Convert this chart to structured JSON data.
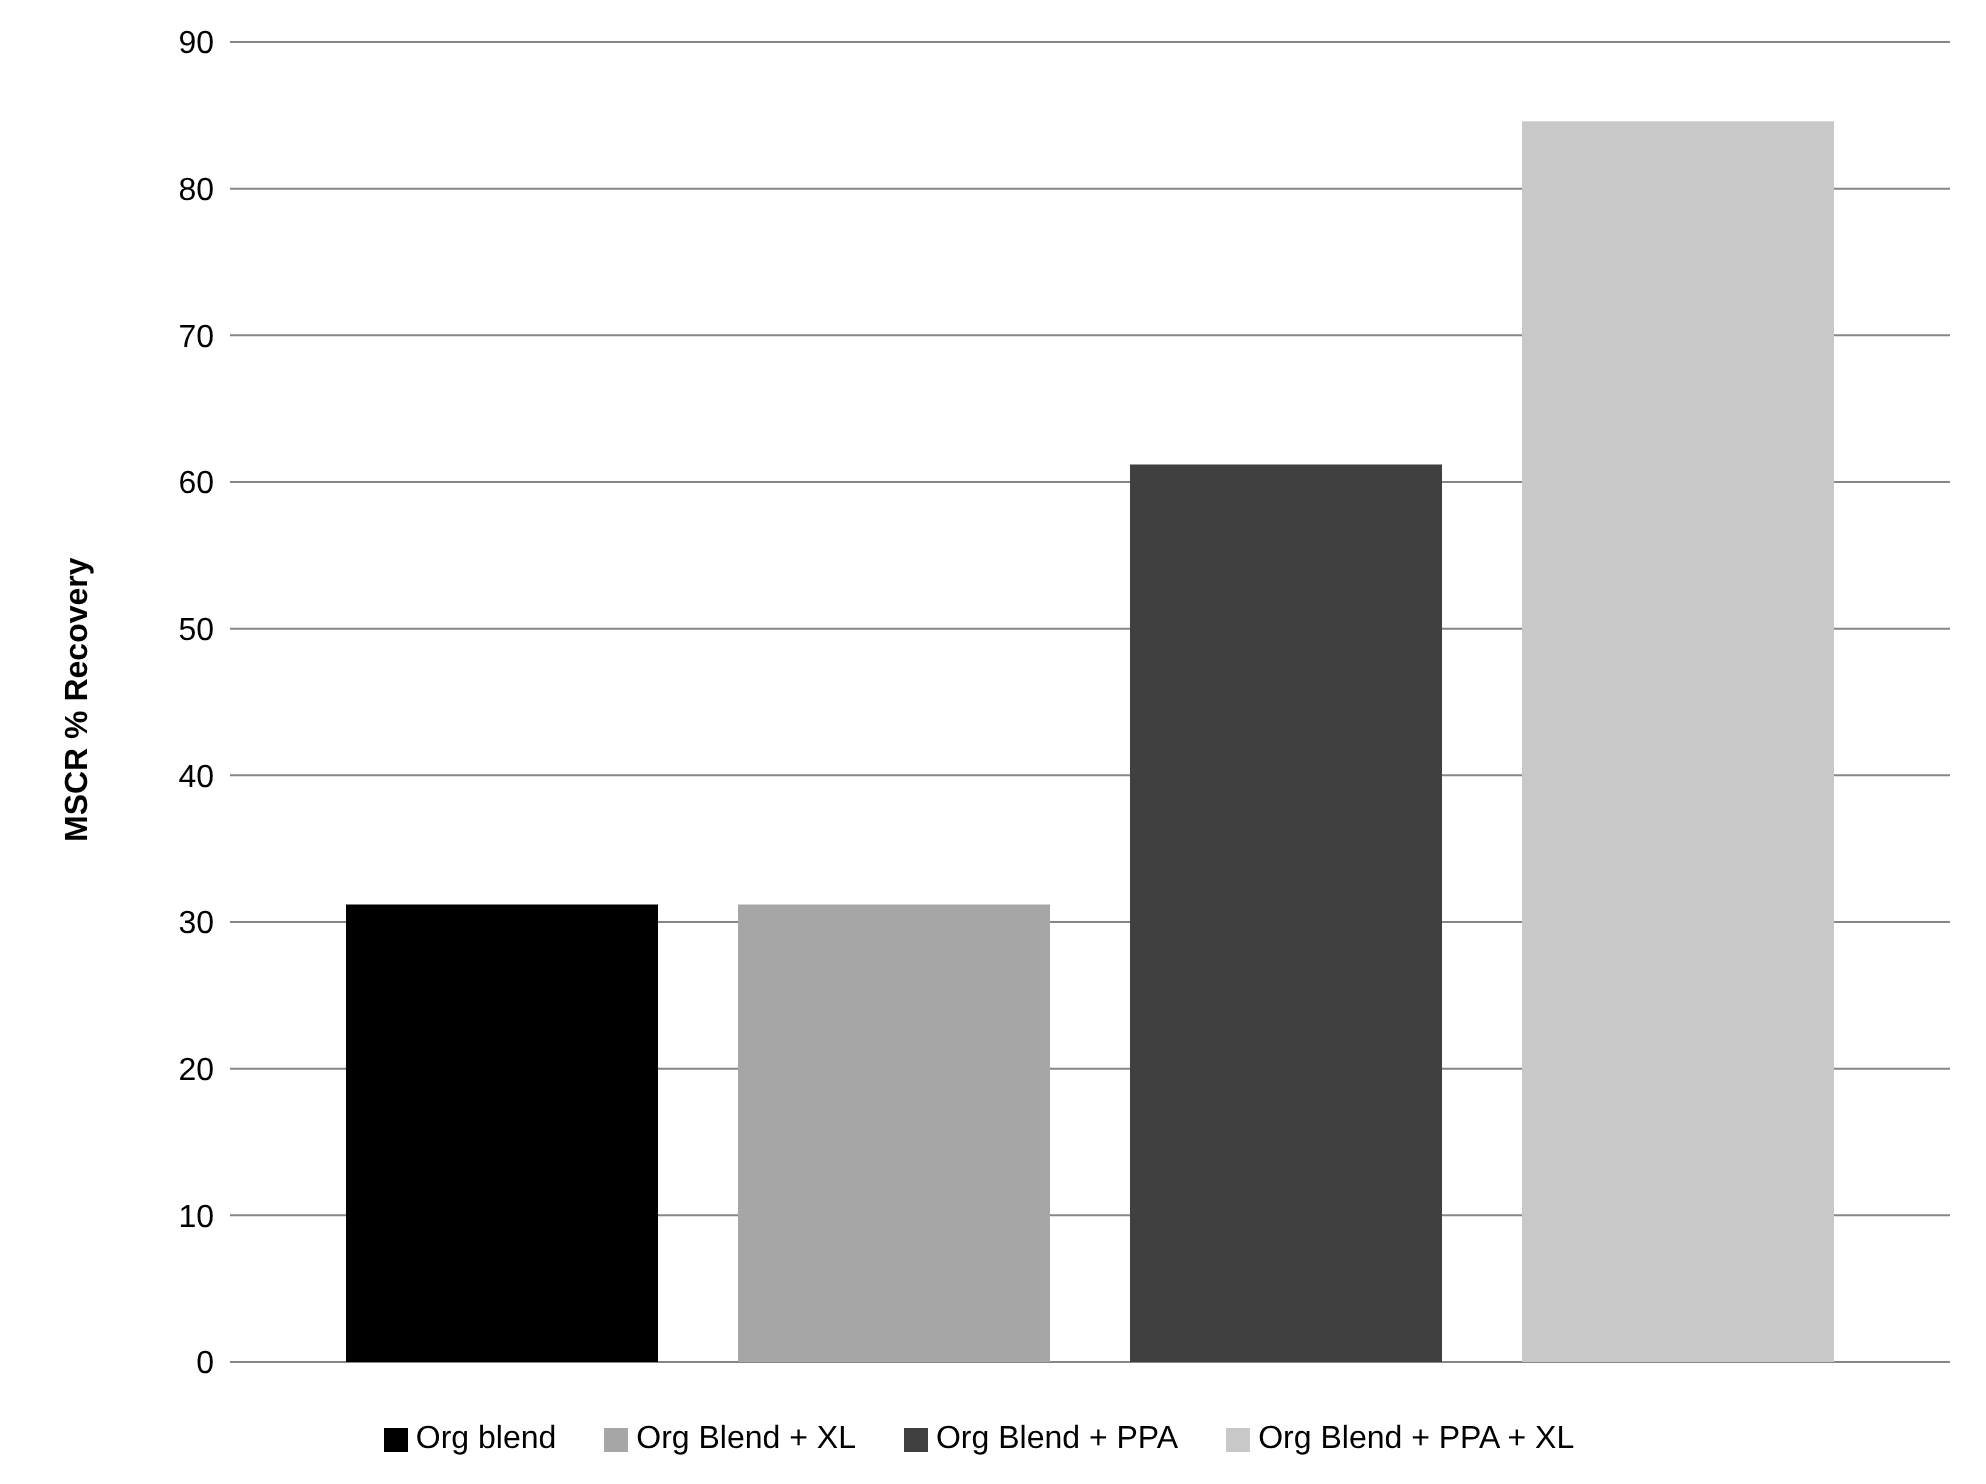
{
  "chart_data": {
    "type": "bar",
    "ylabel": "MSCR % Recovery",
    "categories": [
      null
    ],
    "series": [
      {
        "name": "Org blend",
        "color": "#000000",
        "values": [
          31.2
        ]
      },
      {
        "name": "Org Blend + XL",
        "color": "#a6a6a6",
        "values": [
          31.2
        ]
      },
      {
        "name": "Org Blend + PPA",
        "color": "#404040",
        "values": [
          61.2
        ]
      },
      {
        "name": "Org Blend + PPA + XL",
        "color": "#c8c8c8",
        "values": [
          84.6
        ]
      }
    ],
    "ylim": [
      0,
      90
    ],
    "yticks": [
      0,
      10,
      20,
      30,
      40,
      50,
      60,
      70,
      80,
      90
    ],
    "grid": "y",
    "legend": "bottom"
  }
}
